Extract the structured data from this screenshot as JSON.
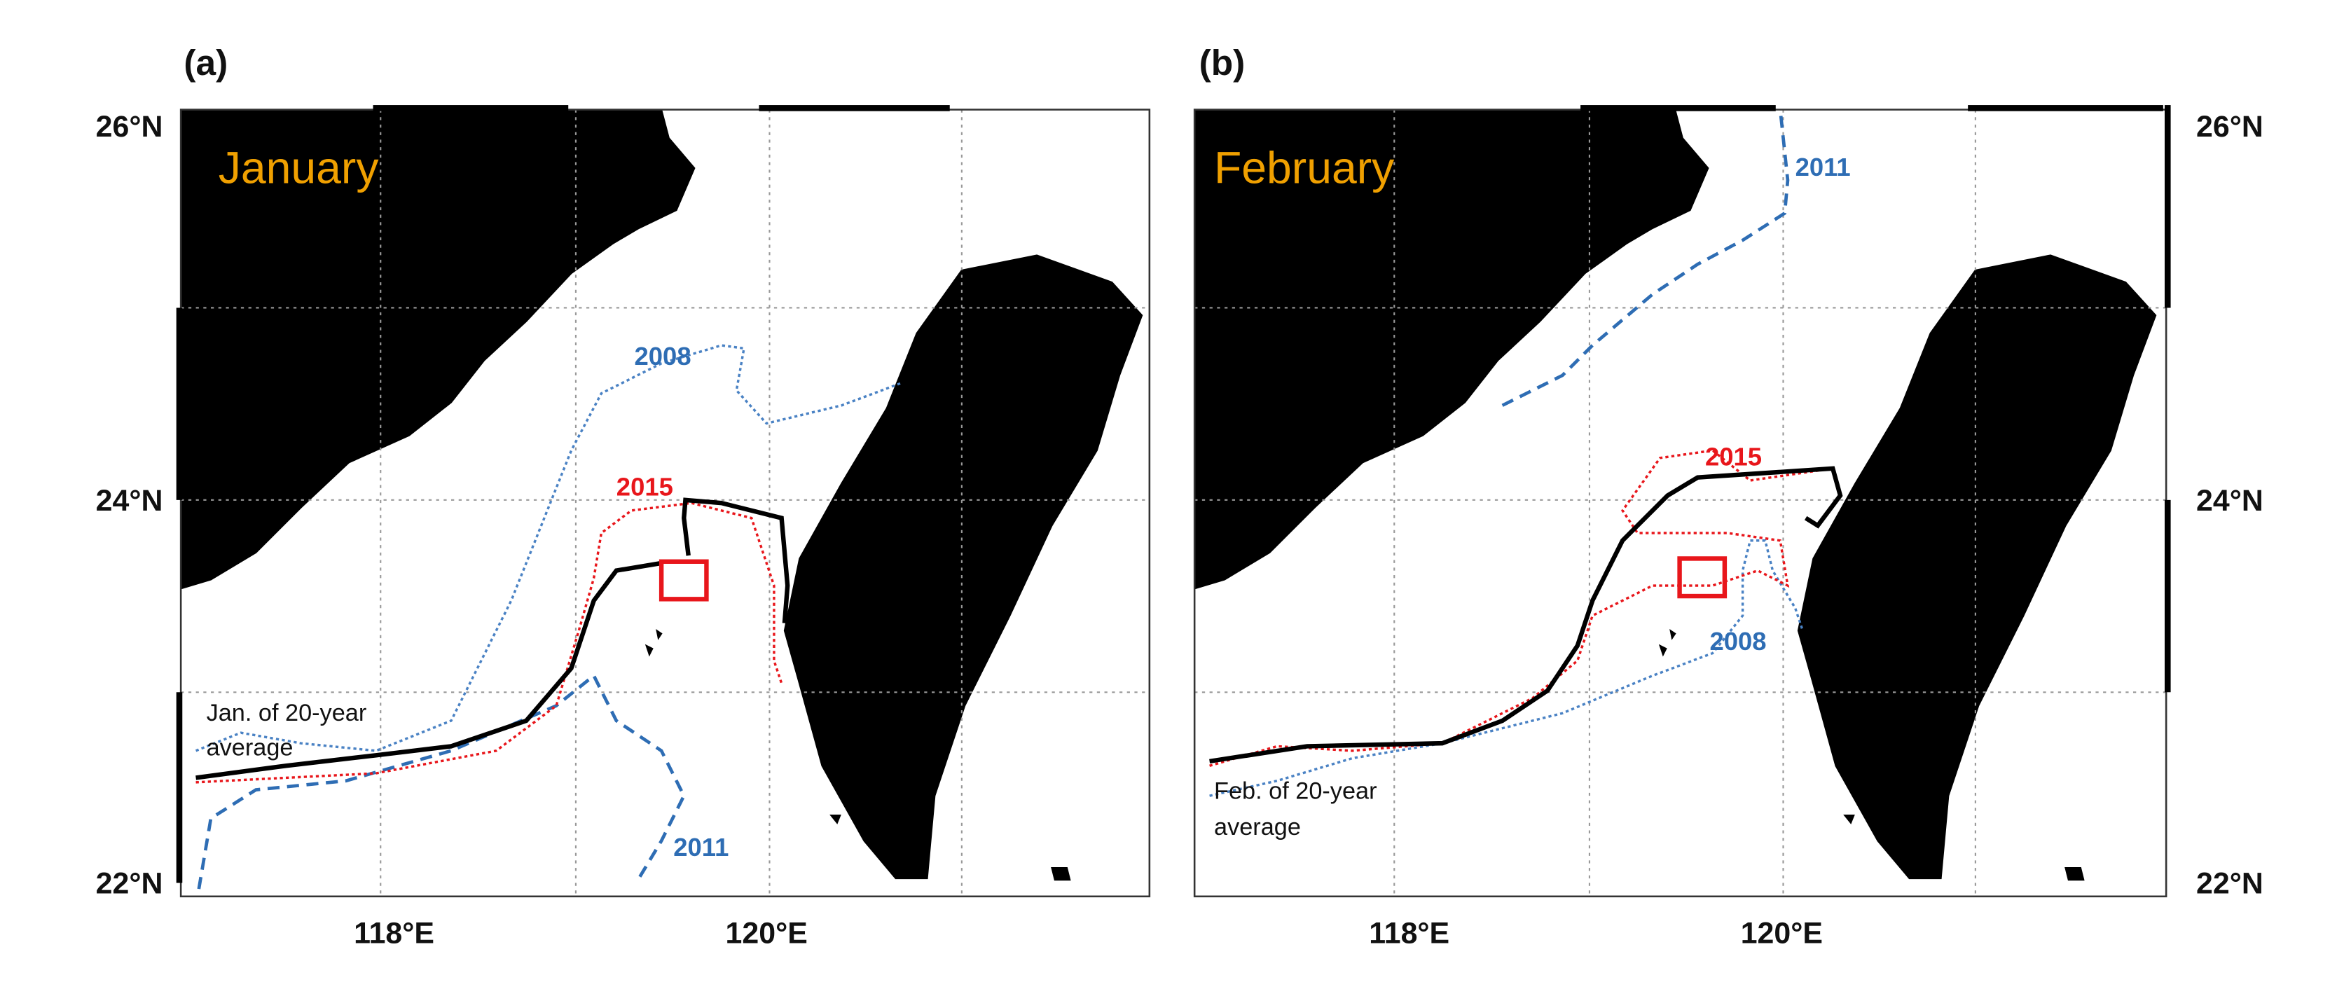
{
  "panels": [
    {
      "label": "(a)",
      "title": "January",
      "year_labels": [
        "2008",
        "2015",
        "2011"
      ],
      "average_label": [
        "Jan. of 20-year",
        "average"
      ]
    },
    {
      "label": "(b)",
      "title": "February",
      "year_labels": [
        "2011",
        "2015",
        "2008"
      ],
      "average_label": [
        "Feb. of 20-year",
        "average"
      ]
    }
  ],
  "lat_labels": [
    "26°N",
    "24°N",
    "22°N"
  ],
  "lon_labels": [
    "118°E",
    "120°E"
  ]
}
